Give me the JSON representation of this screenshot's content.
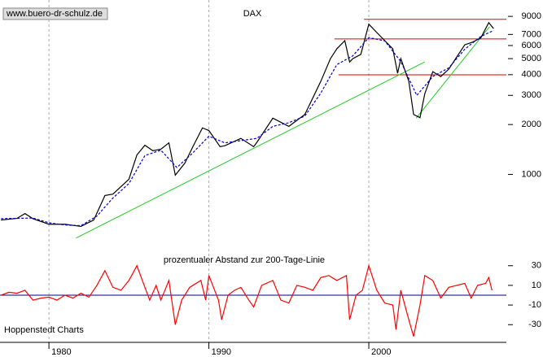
{
  "chart_data": [
    {
      "type": "line",
      "title": "DAX",
      "source": "www.buero-dr-schulz.de",
      "log_scale": true,
      "xlim": [
        1976.94,
        2008.6
      ],
      "ylim": [
        380,
        11300
      ],
      "yticks": [
        1000,
        2000,
        3000,
        4000,
        5000,
        6000,
        7000,
        9000
      ],
      "series": [
        {
          "name": "DAX",
          "color": "#000000",
          "x": [
            1977,
            1978,
            1978.5,
            1979,
            1980,
            1981,
            1982,
            1982.8,
            1983.5,
            1984,
            1985,
            1985.5,
            1986,
            1986.5,
            1987,
            1987.5,
            1987.9,
            1988.5,
            1989,
            1989.6,
            1990,
            1990.7,
            1991,
            1992,
            1992.8,
            1993,
            1994,
            1995,
            1996,
            1997,
            1997.6,
            1998,
            1998.5,
            1998.8,
            1999,
            1999.5,
            2000,
            2000.5,
            2001,
            2001.5,
            2001.8,
            2002,
            2002.5,
            2002.8,
            2003.2,
            2003.5,
            2004,
            2004.5,
            2005,
            2005.5,
            2006,
            2006.5,
            2007,
            2007.5,
            2007.8
          ],
          "values": [
            530,
            542,
            580,
            540,
            500,
            500,
            485,
            530,
            745,
            760,
            935,
            1310,
            1500,
            1390,
            1420,
            1550,
            990,
            1170,
            1470,
            1910,
            1840,
            1470,
            1490,
            1650,
            1470,
            1560,
            2185,
            1950,
            2300,
            3650,
            5000,
            5730,
            6420,
            4770,
            5000,
            5300,
            8080,
            7190,
            6420,
            5730,
            4080,
            5000,
            3650,
            2300,
            2200,
            3070,
            4170,
            3900,
            4320,
            5120,
            6060,
            6300,
            6670,
            8250,
            7600
          ]
        },
        {
          "name": "200-Tage-Linie",
          "color": "#0000cc",
          "x": [
            1977,
            1979,
            1980,
            1981,
            1982,
            1983,
            1984,
            1985,
            1986,
            1987,
            1988,
            1989,
            1990,
            1991,
            1992,
            1993,
            1994,
            1995,
            1996,
            1997,
            1998,
            1999,
            2000,
            2001,
            2002,
            2003,
            2004,
            2005,
            2006,
            2007,
            2007.8
          ],
          "values": [
            540,
            545,
            510,
            495,
            490,
            560,
            720,
            880,
            1300,
            1400,
            1100,
            1350,
            1700,
            1550,
            1600,
            1650,
            1950,
            2050,
            2250,
            3100,
            4600,
            5200,
            6700,
            6400,
            4800,
            3000,
            3900,
            4400,
            5700,
            6800,
            7400
          ]
        }
      ],
      "trend_lines": {
        "color": "#22cc22",
        "lines": [
          {
            "x": [
              1981.7,
              2003.5
            ],
            "y": [
              413,
              4780
            ]
          },
          {
            "x": [
              2002.96,
              2007.55
            ],
            "y": [
              2185,
              7800
            ]
          }
        ]
      },
      "resistance_lines": {
        "color": "#dd0000",
        "lines": [
          {
            "x0": 1999.7,
            "y": 8640
          },
          {
            "x0": 1997.85,
            "y": 6580
          },
          {
            "x0": 1998.1,
            "y": 3990
          }
        ]
      }
    },
    {
      "type": "line",
      "title": "prozentualer Abstand zur 200-Tage-Linie",
      "source": "Hoppenstedt Charts",
      "xlim": [
        1976.94,
        2008.6
      ],
      "ylim": [
        -48,
        48
      ],
      "xticks": [
        1980,
        1990,
        2000
      ],
      "yticks": [
        30,
        10,
        -10,
        -30
      ],
      "zero_line": 0,
      "series": [
        {
          "name": "Abstand",
          "color": "#ff0000",
          "x": [
            1977,
            1977.5,
            1978,
            1978.5,
            1979,
            1979.5,
            1980,
            1980.5,
            1981,
            1981.5,
            1982,
            1982.5,
            1983,
            1983.5,
            1984,
            1984.5,
            1985,
            1985.5,
            1986,
            1986.3,
            1986.7,
            1987,
            1987.5,
            1987.9,
            1988.3,
            1988.8,
            1989.5,
            1989.8,
            1990,
            1990.6,
            1990.8,
            1991.2,
            1991.6,
            1992,
            1992.5,
            1992.8,
            1993.3,
            1994,
            1994.5,
            1995,
            1995.5,
            1996,
            1996.5,
            1997,
            1997.5,
            1998,
            1998.6,
            1998.8,
            1999.2,
            1999.6,
            2000,
            2000.5,
            2001,
            2001.5,
            2001.7,
            2002,
            2002.5,
            2002.8,
            2003.2,
            2003.5,
            2004,
            2004.5,
            2005,
            2005.5,
            2006,
            2006.4,
            2006.8,
            2007.3,
            2007.5,
            2007.7
          ],
          "values": [
            0,
            3,
            2,
            5,
            -5,
            -3,
            -2,
            -5,
            0,
            -3,
            2,
            -2,
            10,
            25,
            8,
            5,
            15,
            30,
            8,
            -5,
            10,
            -5,
            15,
            -30,
            -5,
            8,
            15,
            -5,
            20,
            -5,
            -25,
            0,
            5,
            8,
            -5,
            -12,
            10,
            15,
            -5,
            -8,
            10,
            8,
            5,
            18,
            20,
            15,
            20,
            -25,
            0,
            5,
            30,
            5,
            -8,
            -10,
            -35,
            5,
            -25,
            -42,
            -10,
            20,
            15,
            -3,
            8,
            10,
            12,
            -3,
            10,
            12,
            18,
            5
          ]
        }
      ]
    }
  ]
}
